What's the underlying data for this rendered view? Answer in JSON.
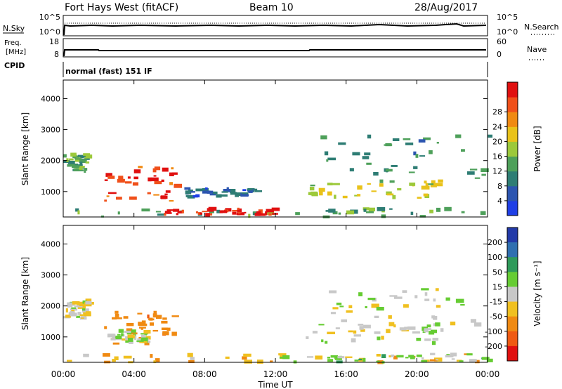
{
  "header": {
    "station": "Fort Hays West (fitACF)",
    "beam": "Beam 10",
    "date": "28/Aug/2017"
  },
  "noise": {
    "left_label": "N.Sky",
    "right_label": "N.Search",
    "left_ticks": [
      "10^5",
      "10^0"
    ],
    "right_ticks": [
      "10^5",
      "10^0"
    ]
  },
  "freq": {
    "left_label_1": "Freq.",
    "left_label_2": "[MHz]",
    "right_label": "Nave",
    "left_ticks": [
      "18",
      "8"
    ],
    "right_ticks": [
      "60",
      "0"
    ],
    "cpid_label": "CPID",
    "cpid_text": "normal (fast) 151 IF"
  },
  "panels": {
    "ylabel": "Slant Range [km]",
    "xlabel": "Time UT",
    "yticks": [
      "1000",
      "2000",
      "3000",
      "4000"
    ],
    "xticks": [
      "00:00",
      "04:00",
      "08:00",
      "12:00",
      "16:00",
      "20:00",
      "00:00"
    ]
  },
  "colorbars": {
    "power": {
      "label": "Power [dB]",
      "ticks": [
        "4",
        "8",
        "12",
        "16",
        "20",
        "24",
        "28"
      ],
      "colors": [
        "#1f3fe6",
        "#2c55b0",
        "#2e7d74",
        "#4ea05a",
        "#9cc93a",
        "#e9c21a",
        "#f08a12",
        "#f0501a",
        "#e01010"
      ]
    },
    "velocity": {
      "label": "Velocity [m s⁻¹]",
      "ticks": [
        "200",
        "100",
        "50",
        "15",
        "-15",
        "-50",
        "-100",
        "-200"
      ],
      "colors": [
        "#233aa8",
        "#2f6fb0",
        "#2f9a5a",
        "#66cc33",
        "#c8c8c8",
        "#f0c020",
        "#f08a12",
        "#ef5a12",
        "#e01010"
      ]
    }
  },
  "chart_data": [
    {
      "type": "heatmap",
      "title": "Power",
      "xlabel": "Time UT",
      "ylabel": "Slant Range [km]",
      "xlim": [
        0,
        24
      ],
      "ylim": [
        180,
        4600
      ],
      "colorbar": "Power [dB]",
      "colorbar_range": [
        0,
        30
      ],
      "regions": [
        {
          "t0": 0.0,
          "t1": 1.3,
          "r0": 1600,
          "r1": 2200,
          "value": 12
        },
        {
          "t0": 2.3,
          "t1": 6.3,
          "r0": 700,
          "r1": 1800,
          "value": 26
        },
        {
          "t0": 6.8,
          "t1": 11.0,
          "r0": 800,
          "r1": 1100,
          "value": 6
        },
        {
          "t0": 0.0,
          "t1": 24.0,
          "r0": 180,
          "r1": 450,
          "value": 12
        },
        {
          "t0": 5.5,
          "t1": 12.0,
          "r0": 250,
          "r1": 450,
          "value": 28
        },
        {
          "t0": 13.7,
          "t1": 21.5,
          "r0": 800,
          "r1": 1400,
          "value": 16
        },
        {
          "t0": 14.5,
          "t1": 24.0,
          "r0": 1400,
          "r1": 2800,
          "value": 10
        }
      ]
    },
    {
      "type": "heatmap",
      "title": "Velocity",
      "xlabel": "Time UT",
      "ylabel": "Slant Range [km]",
      "xlim": [
        0,
        24
      ],
      "ylim": [
        180,
        4600
      ],
      "colorbar": "Velocity [m s⁻¹]",
      "colorbar_range": [
        -200,
        200
      ],
      "regions": [
        {
          "t0": 0.0,
          "t1": 1.3,
          "r0": 1600,
          "r1": 2200,
          "value": 0
        },
        {
          "t0": 2.3,
          "t1": 6.3,
          "r0": 700,
          "r1": 1800,
          "value": -80
        },
        {
          "t0": 2.5,
          "t1": 5.0,
          "r0": 800,
          "r1": 1200,
          "value": 0
        },
        {
          "t0": 0.0,
          "t1": 24.0,
          "r0": 180,
          "r1": 450,
          "value": -40
        },
        {
          "t0": 12.0,
          "t1": 24.0,
          "r0": 180,
          "r1": 450,
          "value": 30
        },
        {
          "t0": 13.7,
          "t1": 21.5,
          "r0": 800,
          "r1": 1400,
          "value": 0
        },
        {
          "t0": 14.5,
          "t1": 24.0,
          "r0": 1400,
          "r1": 2800,
          "value": 0
        }
      ]
    }
  ]
}
